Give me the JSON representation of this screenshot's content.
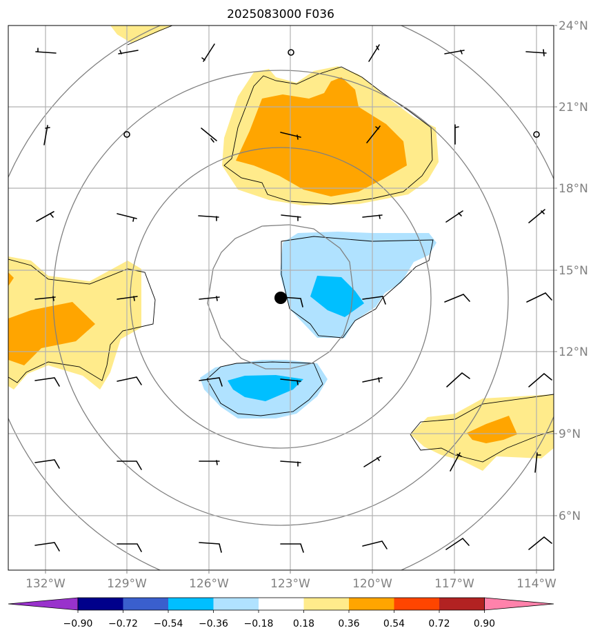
{
  "title": "2025083000 F036",
  "lat_labels": [
    "24°N",
    "21°N",
    "18°N",
    "15°N",
    "12°N",
    "9°N",
    "6°N"
  ],
  "lon_labels": [
    "132°W",
    "129°W",
    "126°W",
    "123°W",
    "120°W",
    "117°W",
    "114°W"
  ],
  "colorbar": {
    "colors": [
      "#9932cc",
      "#00008b",
      "#3a5fcd",
      "#00bfff",
      "#b0e2ff",
      "#ffffff",
      "#ffeb8b",
      "#ffa500",
      "#ff4500",
      "#b22222",
      "#ff82ab"
    ],
    "tick_labels": [
      "−0.90",
      "−0.72",
      "−0.54",
      "−0.36",
      "−0.18",
      "0.18",
      "0.36",
      "0.54",
      "0.72",
      "0.90"
    ]
  },
  "center_marker": {
    "lon": "123.4°W",
    "lat": "14.0°N"
  },
  "fill_colors": {
    "light_yellow": "#ffeb8b",
    "orange": "#ffa500",
    "light_blue": "#b0e2ff",
    "blue": "#00bfff"
  }
}
